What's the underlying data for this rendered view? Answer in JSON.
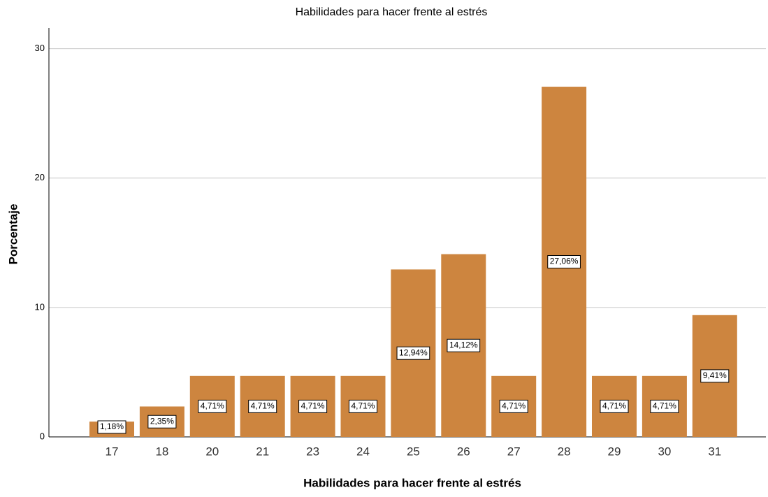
{
  "chart_data": {
    "type": "bar",
    "title": "Habilidades para hacer frente al estrés",
    "x_label": "Habilidades para hacer frente al estrés",
    "y_label": "Porcentaje",
    "categories": [
      "17",
      "18",
      "20",
      "21",
      "23",
      "24",
      "25",
      "26",
      "27",
      "28",
      "29",
      "30",
      "31"
    ],
    "values": [
      1.18,
      2.35,
      4.71,
      4.71,
      4.71,
      4.71,
      12.94,
      14.12,
      4.71,
      27.06,
      4.71,
      4.71,
      9.41
    ],
    "value_labels": [
      "1,18%",
      "2,35%",
      "4,71%",
      "4,71%",
      "4,71%",
      "4,71%",
      "12,94%",
      "14,12%",
      "4,71%",
      "27,06%",
      "4,71%",
      "4,71%",
      "9,41%"
    ],
    "color": "#cd853f",
    "ylim": [
      0,
      31.6
    ],
    "yticks": [
      0,
      10,
      20,
      30
    ],
    "grid": true
  }
}
